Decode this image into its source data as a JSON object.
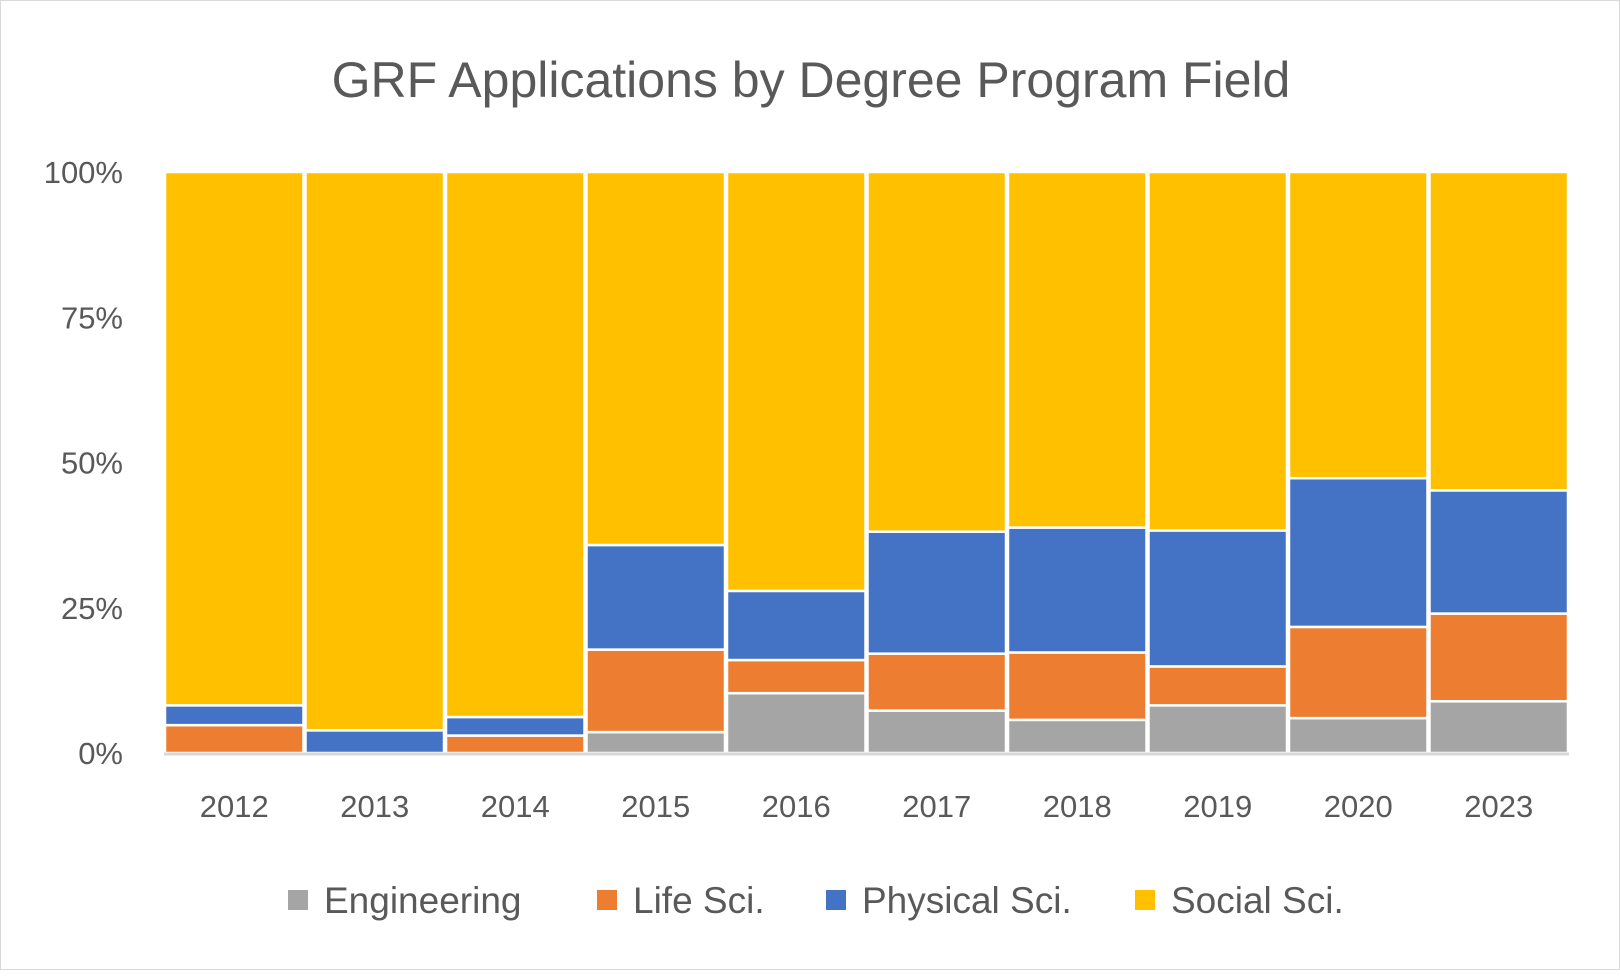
{
  "chart_data": {
    "type": "bar",
    "stacked": true,
    "percent": true,
    "title": "GRF Applications by Degree Program Field",
    "xlabel": "",
    "ylabel": "",
    "ylim": [
      0,
      100
    ],
    "yticks": [
      "0%",
      "25%",
      "50%",
      "75%",
      "100%"
    ],
    "categories": [
      "2012",
      "2013",
      "2014",
      "2015",
      "2016",
      "2017",
      "2018",
      "2019",
      "2020",
      "2023"
    ],
    "series": [
      {
        "name": "Engineering",
        "color": "#A5A5A5",
        "values": [
          0,
          0,
          0,
          3.6,
          10.3,
          7.3,
          5.7,
          8.2,
          6.0,
          8.9
        ]
      },
      {
        "name": "Life Sci.",
        "color": "#ED7D31",
        "values": [
          4.8,
          0,
          3.0,
          14.2,
          5.7,
          9.8,
          11.6,
          6.7,
          15.7,
          15.1
        ]
      },
      {
        "name": "Physical Sci.",
        "color": "#4472C4",
        "values": [
          3.4,
          3.9,
          3.2,
          18.0,
          11.9,
          21.0,
          21.5,
          23.4,
          25.6,
          21.2
        ]
      },
      {
        "name": "Social Sci.",
        "color": "#FFC000",
        "values": [
          91.8,
          96.1,
          93.8,
          64.2,
          72.1,
          61.9,
          61.2,
          61.7,
          52.7,
          54.8
        ]
      }
    ],
    "legend": "bottom",
    "grid": false
  }
}
